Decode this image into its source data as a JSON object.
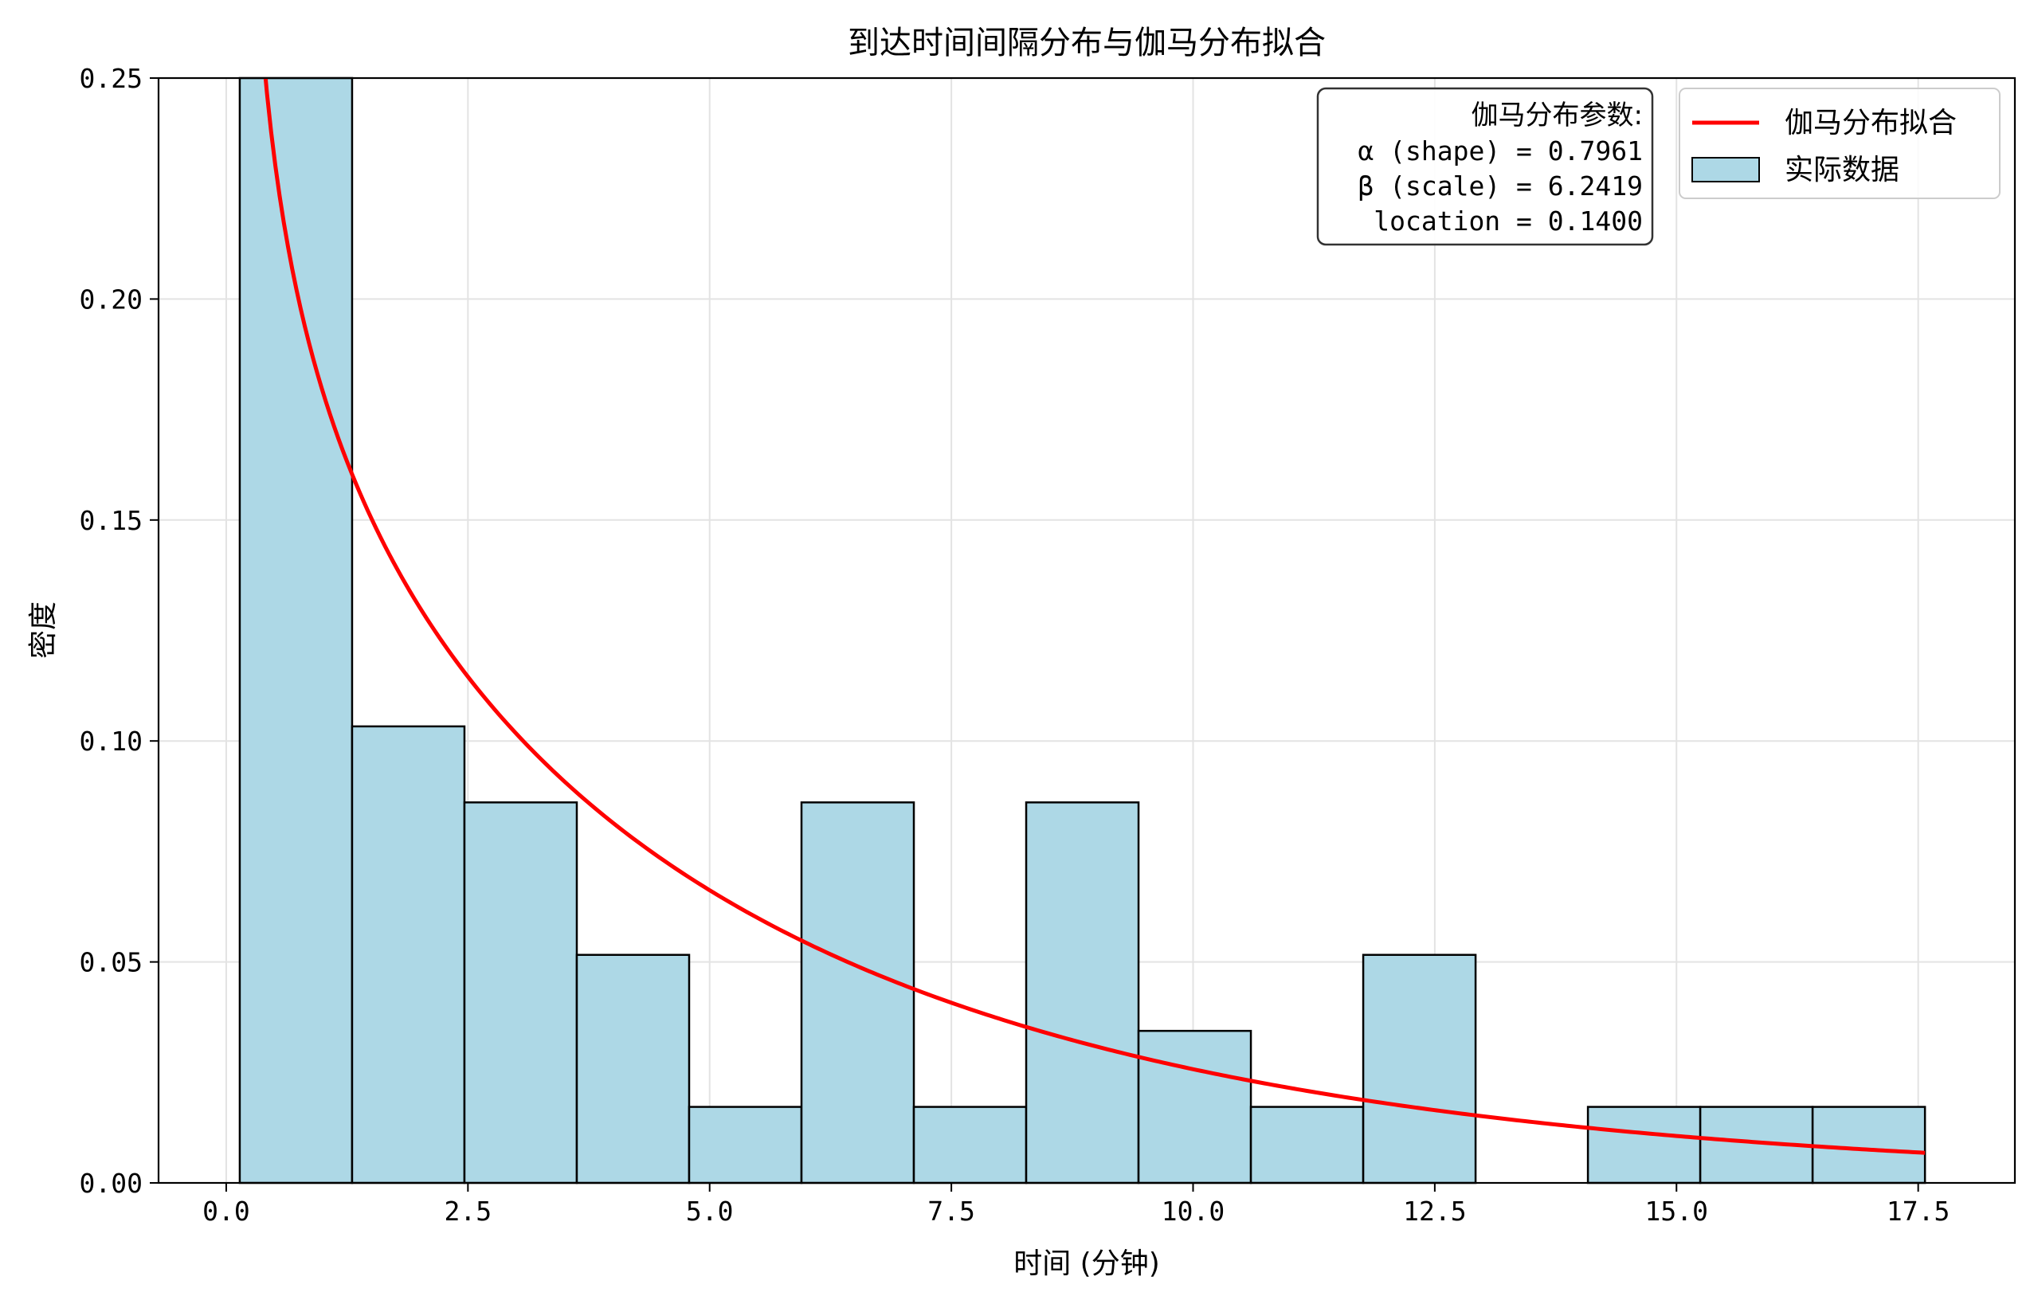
{
  "chart_data": {
    "type": "bar",
    "title": "到达时间间隔分布与伽马分布拟合",
    "xlabel": "时间 (分钟)",
    "ylabel": "密度",
    "xlim": [
      -0.7,
      18.5
    ],
    "ylim": [
      0,
      0.25
    ],
    "xticks": [
      0.0,
      2.5,
      5.0,
      7.5,
      10.0,
      12.5,
      15.0,
      17.5
    ],
    "xtick_labels": [
      "0.0",
      "2.5",
      "5.0",
      "7.5",
      "10.0",
      "12.5",
      "15.0",
      "17.5"
    ],
    "yticks": [
      0.0,
      0.05,
      0.1,
      0.15,
      0.2,
      0.25
    ],
    "ytick_labels": [
      "0.00",
      "0.05",
      "0.10",
      "0.15",
      "0.20",
      "0.25"
    ],
    "grid": true,
    "legend_position": "top-right",
    "series": [
      {
        "name": "实际数据",
        "type": "histogram",
        "bin_edges": [
          0.14,
          1.302,
          2.464,
          3.626,
          4.788,
          5.95,
          7.112,
          8.274,
          9.436,
          10.598,
          11.76,
          12.922,
          14.084,
          15.246,
          16.408,
          17.57
        ],
        "values": [
          0.25,
          0.1033,
          0.0861,
          0.0516,
          0.0172,
          0.0861,
          0.0172,
          0.0861,
          0.0344,
          0.0172,
          0.0516,
          0.0,
          0.0172,
          0.0172,
          0.0172
        ],
        "color": "#add8e6",
        "edgecolor": "#000000"
      },
      {
        "name": "伽马分布拟合",
        "type": "line",
        "color": "#ff0000",
        "distribution": "gamma",
        "shape": 0.7961,
        "scale": 6.2419,
        "location": 0.14,
        "x_range": [
          0.14,
          17.57
        ]
      }
    ],
    "annotation": {
      "lines": [
        "伽马分布参数:",
        "α (shape) = 0.7961",
        "β (scale) = 6.2419",
        "location = 0.1400"
      ]
    }
  },
  "colors": {
    "bar_fill": "#add8e6",
    "bar_edge": "#000000",
    "fit_line": "#ff0000",
    "grid": "#e3e3e3"
  }
}
